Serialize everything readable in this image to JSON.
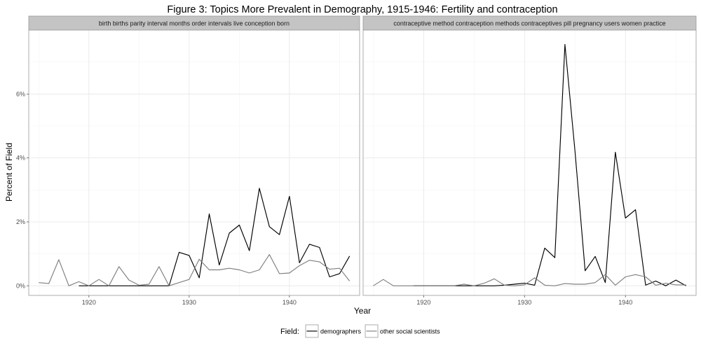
{
  "chart_data": {
    "type": "line",
    "title": "Figure 3: Topics More Prevalent in Demography, 1915-1946: Fertility and contraception",
    "xlabel": "Year",
    "ylabel": "Percent of Field",
    "xlim": [
      1914,
      1947
    ],
    "ylim": [
      -0.3,
      8.0
    ],
    "x_ticks": [
      1920,
      1930,
      1940
    ],
    "x_tick_labels": [
      "1920",
      "1930",
      "1940"
    ],
    "y_ticks": [
      0,
      2,
      4,
      6
    ],
    "y_tick_labels": [
      "0%",
      "2%",
      "4%",
      "6%"
    ],
    "grid": true,
    "legend": {
      "title": "Field:",
      "position": "bottom",
      "entries": [
        {
          "name": "demographers",
          "color": "#000000"
        },
        {
          "name": "other social scientists",
          "color": "#7f7f7f"
        }
      ]
    },
    "panels": [
      {
        "strip": "birth births parity interval months order intervals live conception born",
        "series": [
          {
            "name": "demographers",
            "color": "#000000",
            "x": [
              1919,
              1920,
              1921,
              1922,
              1923,
              1924,
              1925,
              1926,
              1927,
              1928,
              1929,
              1930,
              1931,
              1932,
              1933,
              1934,
              1935,
              1936,
              1937,
              1938,
              1939,
              1940,
              1941,
              1942,
              1943,
              1944,
              1945,
              1946
            ],
            "values": [
              0,
              0,
              0,
              0,
              0,
              0,
              0,
              0,
              0,
              0,
              1.05,
              0.95,
              0.25,
              2.25,
              0.65,
              1.65,
              1.9,
              1.1,
              3.05,
              1.85,
              1.6,
              2.8,
              0.72,
              1.3,
              1.2,
              0.28,
              0.38,
              0.93
            ]
          },
          {
            "name": "other social scientists",
            "color": "#7f7f7f",
            "x": [
              1915,
              1916,
              1917,
              1918,
              1919,
              1920,
              1921,
              1922,
              1923,
              1924,
              1925,
              1926,
              1927,
              1928,
              1929,
              1930,
              1931,
              1932,
              1933,
              1934,
              1935,
              1936,
              1937,
              1938,
              1939,
              1940,
              1941,
              1942,
              1943,
              1944,
              1945,
              1946
            ],
            "values": [
              0.1,
              0.07,
              0.82,
              0.0,
              0.13,
              0.0,
              0.2,
              0.0,
              0.6,
              0.18,
              0.02,
              0.05,
              0.6,
              0.0,
              0.1,
              0.2,
              0.83,
              0.5,
              0.5,
              0.55,
              0.5,
              0.4,
              0.5,
              0.98,
              0.38,
              0.4,
              0.63,
              0.8,
              0.75,
              0.52,
              0.55,
              0.15
            ]
          }
        ]
      },
      {
        "strip": "contraceptive method contraception methods contraceptives pill pregnancy users women practice",
        "series": [
          {
            "name": "demographers",
            "color": "#000000",
            "x": [
              1919,
              1920,
              1921,
              1922,
              1923,
              1924,
              1925,
              1926,
              1927,
              1928,
              1929,
              1930,
              1931,
              1932,
              1933,
              1934,
              1935,
              1936,
              1937,
              1938,
              1939,
              1940,
              1941,
              1942,
              1943,
              1944,
              1945,
              1946
            ],
            "values": [
              0,
              0,
              0,
              0,
              0,
              0,
              0,
              0,
              0,
              0.02,
              0.05,
              0.08,
              0.02,
              1.18,
              0.88,
              7.55,
              4.2,
              0.47,
              0.92,
              0.1,
              4.18,
              2.12,
              2.38,
              0.02,
              0.15,
              0.0,
              0.18,
              0.0
            ]
          },
          {
            "name": "other social scientists",
            "color": "#7f7f7f",
            "x": [
              1915,
              1916,
              1917,
              1918,
              1919,
              1920,
              1921,
              1922,
              1923,
              1924,
              1925,
              1926,
              1927,
              1928,
              1929,
              1930,
              1931,
              1932,
              1933,
              1934,
              1935,
              1936,
              1937,
              1938,
              1939,
              1940,
              1941,
              1942,
              1943,
              1944,
              1945,
              1946
            ],
            "values": [
              0.0,
              0.2,
              0.0,
              0.0,
              0.0,
              0.0,
              0.0,
              0.0,
              0.0,
              0.05,
              0.0,
              0.08,
              0.22,
              0.02,
              0.0,
              0.03,
              0.25,
              0.02,
              0.0,
              0.07,
              0.05,
              0.05,
              0.1,
              0.35,
              0.02,
              0.28,
              0.35,
              0.28,
              0.02,
              0.08,
              0.03,
              0.03
            ]
          }
        ]
      }
    ]
  }
}
